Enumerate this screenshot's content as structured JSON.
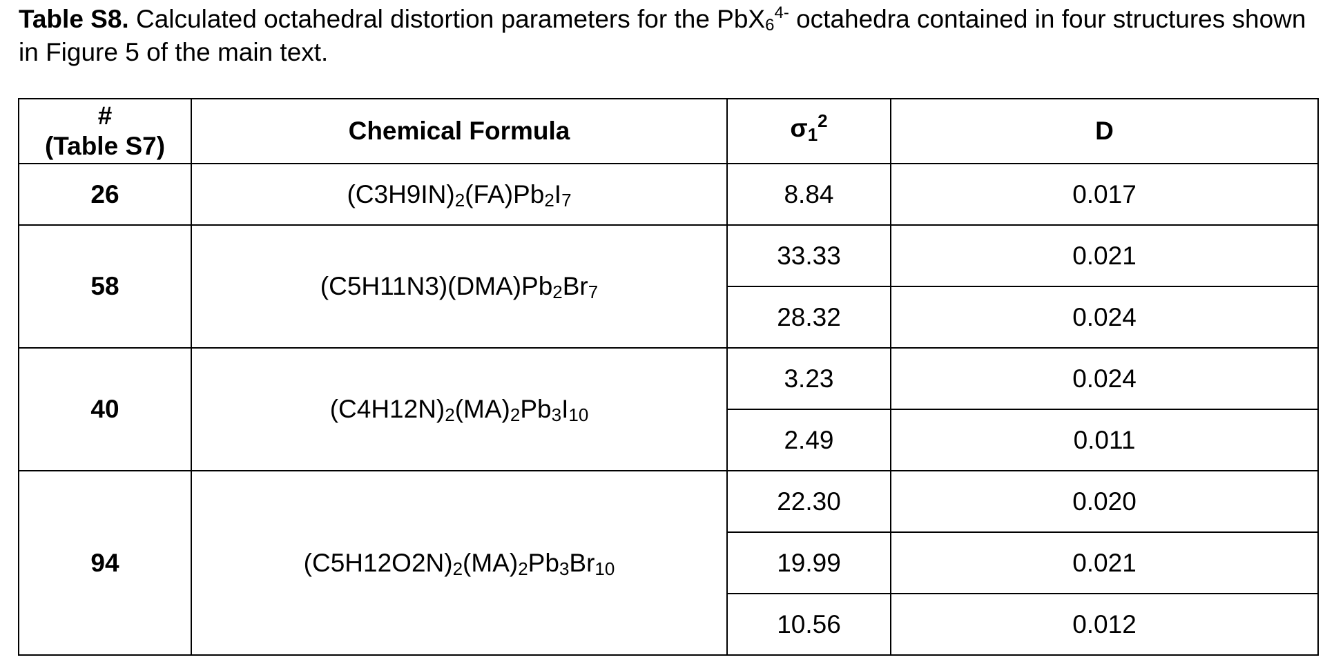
{
  "caption": {
    "label": "Table S8.",
    "text_before": " Calculated octahedral distortion parameters for the PbX",
    "sub": "6",
    "sup": "4-",
    "text_after": " octahedra contained in four structures shown in Figure 5 of the main text."
  },
  "table": {
    "headers": {
      "index_line1": "#",
      "index_line2": "(Table S7)",
      "formula": "Chemical Formula",
      "sigma_base": "σ",
      "sigma_sub": "1",
      "sigma_sup": "2",
      "d": "D"
    },
    "groups": [
      {
        "id": "26",
        "formula": [
          {
            "t": "(C3H9IN)"
          },
          {
            "s": "2"
          },
          {
            "t": "(FA)Pb"
          },
          {
            "s": "2"
          },
          {
            "t": "I"
          },
          {
            "s": "7"
          }
        ],
        "rows": [
          {
            "sigma": "8.84",
            "d": "0.017"
          }
        ]
      },
      {
        "id": "58",
        "formula": [
          {
            "t": "(C5H11N3)(DMA)Pb"
          },
          {
            "s": "2"
          },
          {
            "t": "Br"
          },
          {
            "s": "7"
          }
        ],
        "rows": [
          {
            "sigma": "33.33",
            "d": "0.021"
          },
          {
            "sigma": "28.32",
            "d": "0.024"
          }
        ]
      },
      {
        "id": "40",
        "formula": [
          {
            "t": "(C4H12N)"
          },
          {
            "s": "2"
          },
          {
            "t": "(MA)"
          },
          {
            "s": "2"
          },
          {
            "t": "Pb"
          },
          {
            "s": "3"
          },
          {
            "t": "I"
          },
          {
            "s": "10"
          }
        ],
        "rows": [
          {
            "sigma": "3.23",
            "d": "0.024"
          },
          {
            "sigma": "2.49",
            "d": "0.011"
          }
        ]
      },
      {
        "id": "94",
        "formula": [
          {
            "t": "(C5H12O2N)"
          },
          {
            "s": "2"
          },
          {
            "t": "(MA)"
          },
          {
            "s": "2"
          },
          {
            "t": "Pb"
          },
          {
            "s": "3"
          },
          {
            "t": "Br"
          },
          {
            "s": "10"
          }
        ],
        "rows": [
          {
            "sigma": "22.30",
            "d": "0.020"
          },
          {
            "sigma": "19.99",
            "d": "0.021"
          },
          {
            "sigma": "10.56",
            "d": "0.012"
          }
        ]
      }
    ]
  }
}
